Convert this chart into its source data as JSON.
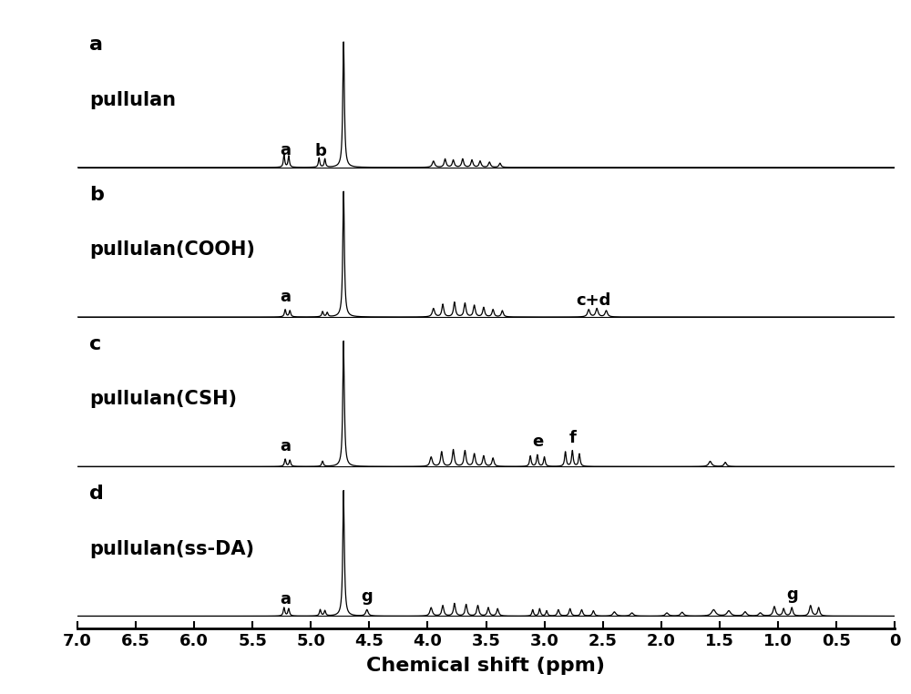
{
  "title": "",
  "xlabel": "Chemical shift (ppm)",
  "x_min": 0.0,
  "x_max": 7.0,
  "spectra_labels": [
    "a",
    "b",
    "c",
    "d"
  ],
  "spectra_names": [
    "pullulan",
    "pullulan(COOH)",
    "pullulan(CSH)",
    "pullulan(ss-DA)"
  ],
  "background_color": "#ffffff",
  "line_color": "#000000",
  "label_fontsize": 16,
  "name_fontsize": 15,
  "axis_fontsize": 15,
  "tick_fontsize": 13,
  "peak_label_fontsize": 13
}
